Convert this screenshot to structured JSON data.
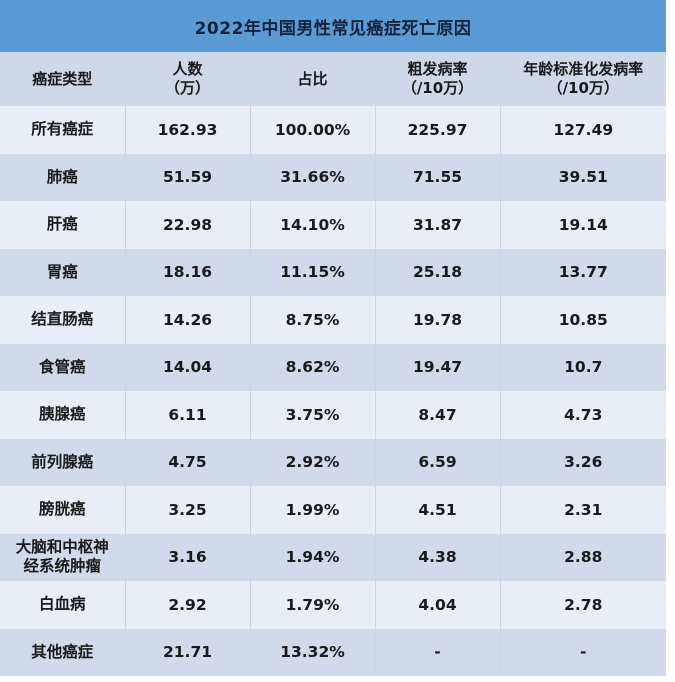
{
  "title": "2022年中国男性常见癌症死亡原因",
  "colors": {
    "title_bg": "#5b9bd5",
    "header_bg": "#cdd9e9",
    "row_light": "#e9eef6",
    "row_dark": "#cfdbea",
    "text": "#1a1a1a"
  },
  "table": {
    "headers": [
      {
        "line1": "癌症类型",
        "line2": ""
      },
      {
        "line1": "人数",
        "line2": "（万）"
      },
      {
        "line1": "占比",
        "line2": ""
      },
      {
        "line1": "粗发病率",
        "line2": "（/10万）"
      },
      {
        "line1": "年龄标准化发病率",
        "line2": "（/10万）"
      }
    ],
    "rows": [
      {
        "type": "所有癌症",
        "type2": "",
        "count": "162.93",
        "share": "100.00%",
        "crude": "225.97",
        "asr": "127.49"
      },
      {
        "type": "肺癌",
        "type2": "",
        "count": "51.59",
        "share": "31.66%",
        "crude": "71.55",
        "asr": "39.51"
      },
      {
        "type": "肝癌",
        "type2": "",
        "count": "22.98",
        "share": "14.10%",
        "crude": "31.87",
        "asr": "19.14"
      },
      {
        "type": "胃癌",
        "type2": "",
        "count": "18.16",
        "share": "11.15%",
        "crude": "25.18",
        "asr": "13.77"
      },
      {
        "type": "结直肠癌",
        "type2": "",
        "count": "14.26",
        "share": "8.75%",
        "crude": "19.78",
        "asr": "10.85"
      },
      {
        "type": "食管癌",
        "type2": "",
        "count": "14.04",
        "share": "8.62%",
        "crude": "19.47",
        "asr": "10.7"
      },
      {
        "type": "胰腺癌",
        "type2": "",
        "count": "6.11",
        "share": "3.75%",
        "crude": "8.47",
        "asr": "4.73"
      },
      {
        "type": "前列腺癌",
        "type2": "",
        "count": "4.75",
        "share": "2.92%",
        "crude": "6.59",
        "asr": "3.26"
      },
      {
        "type": "膀胱癌",
        "type2": "",
        "count": "3.25",
        "share": "1.99%",
        "crude": "4.51",
        "asr": "2.31"
      },
      {
        "type": "大脑和中枢神",
        "type2": "经系统肿瘤",
        "count": "3.16",
        "share": "1.94%",
        "crude": "4.38",
        "asr": "2.88"
      },
      {
        "type": "白血病",
        "type2": "",
        "count": "2.92",
        "share": "1.79%",
        "crude": "4.04",
        "asr": "2.78"
      },
      {
        "type": "其他癌症",
        "type2": "",
        "count": "21.71",
        "share": "13.32%",
        "crude": "-",
        "asr": "-"
      }
    ]
  }
}
